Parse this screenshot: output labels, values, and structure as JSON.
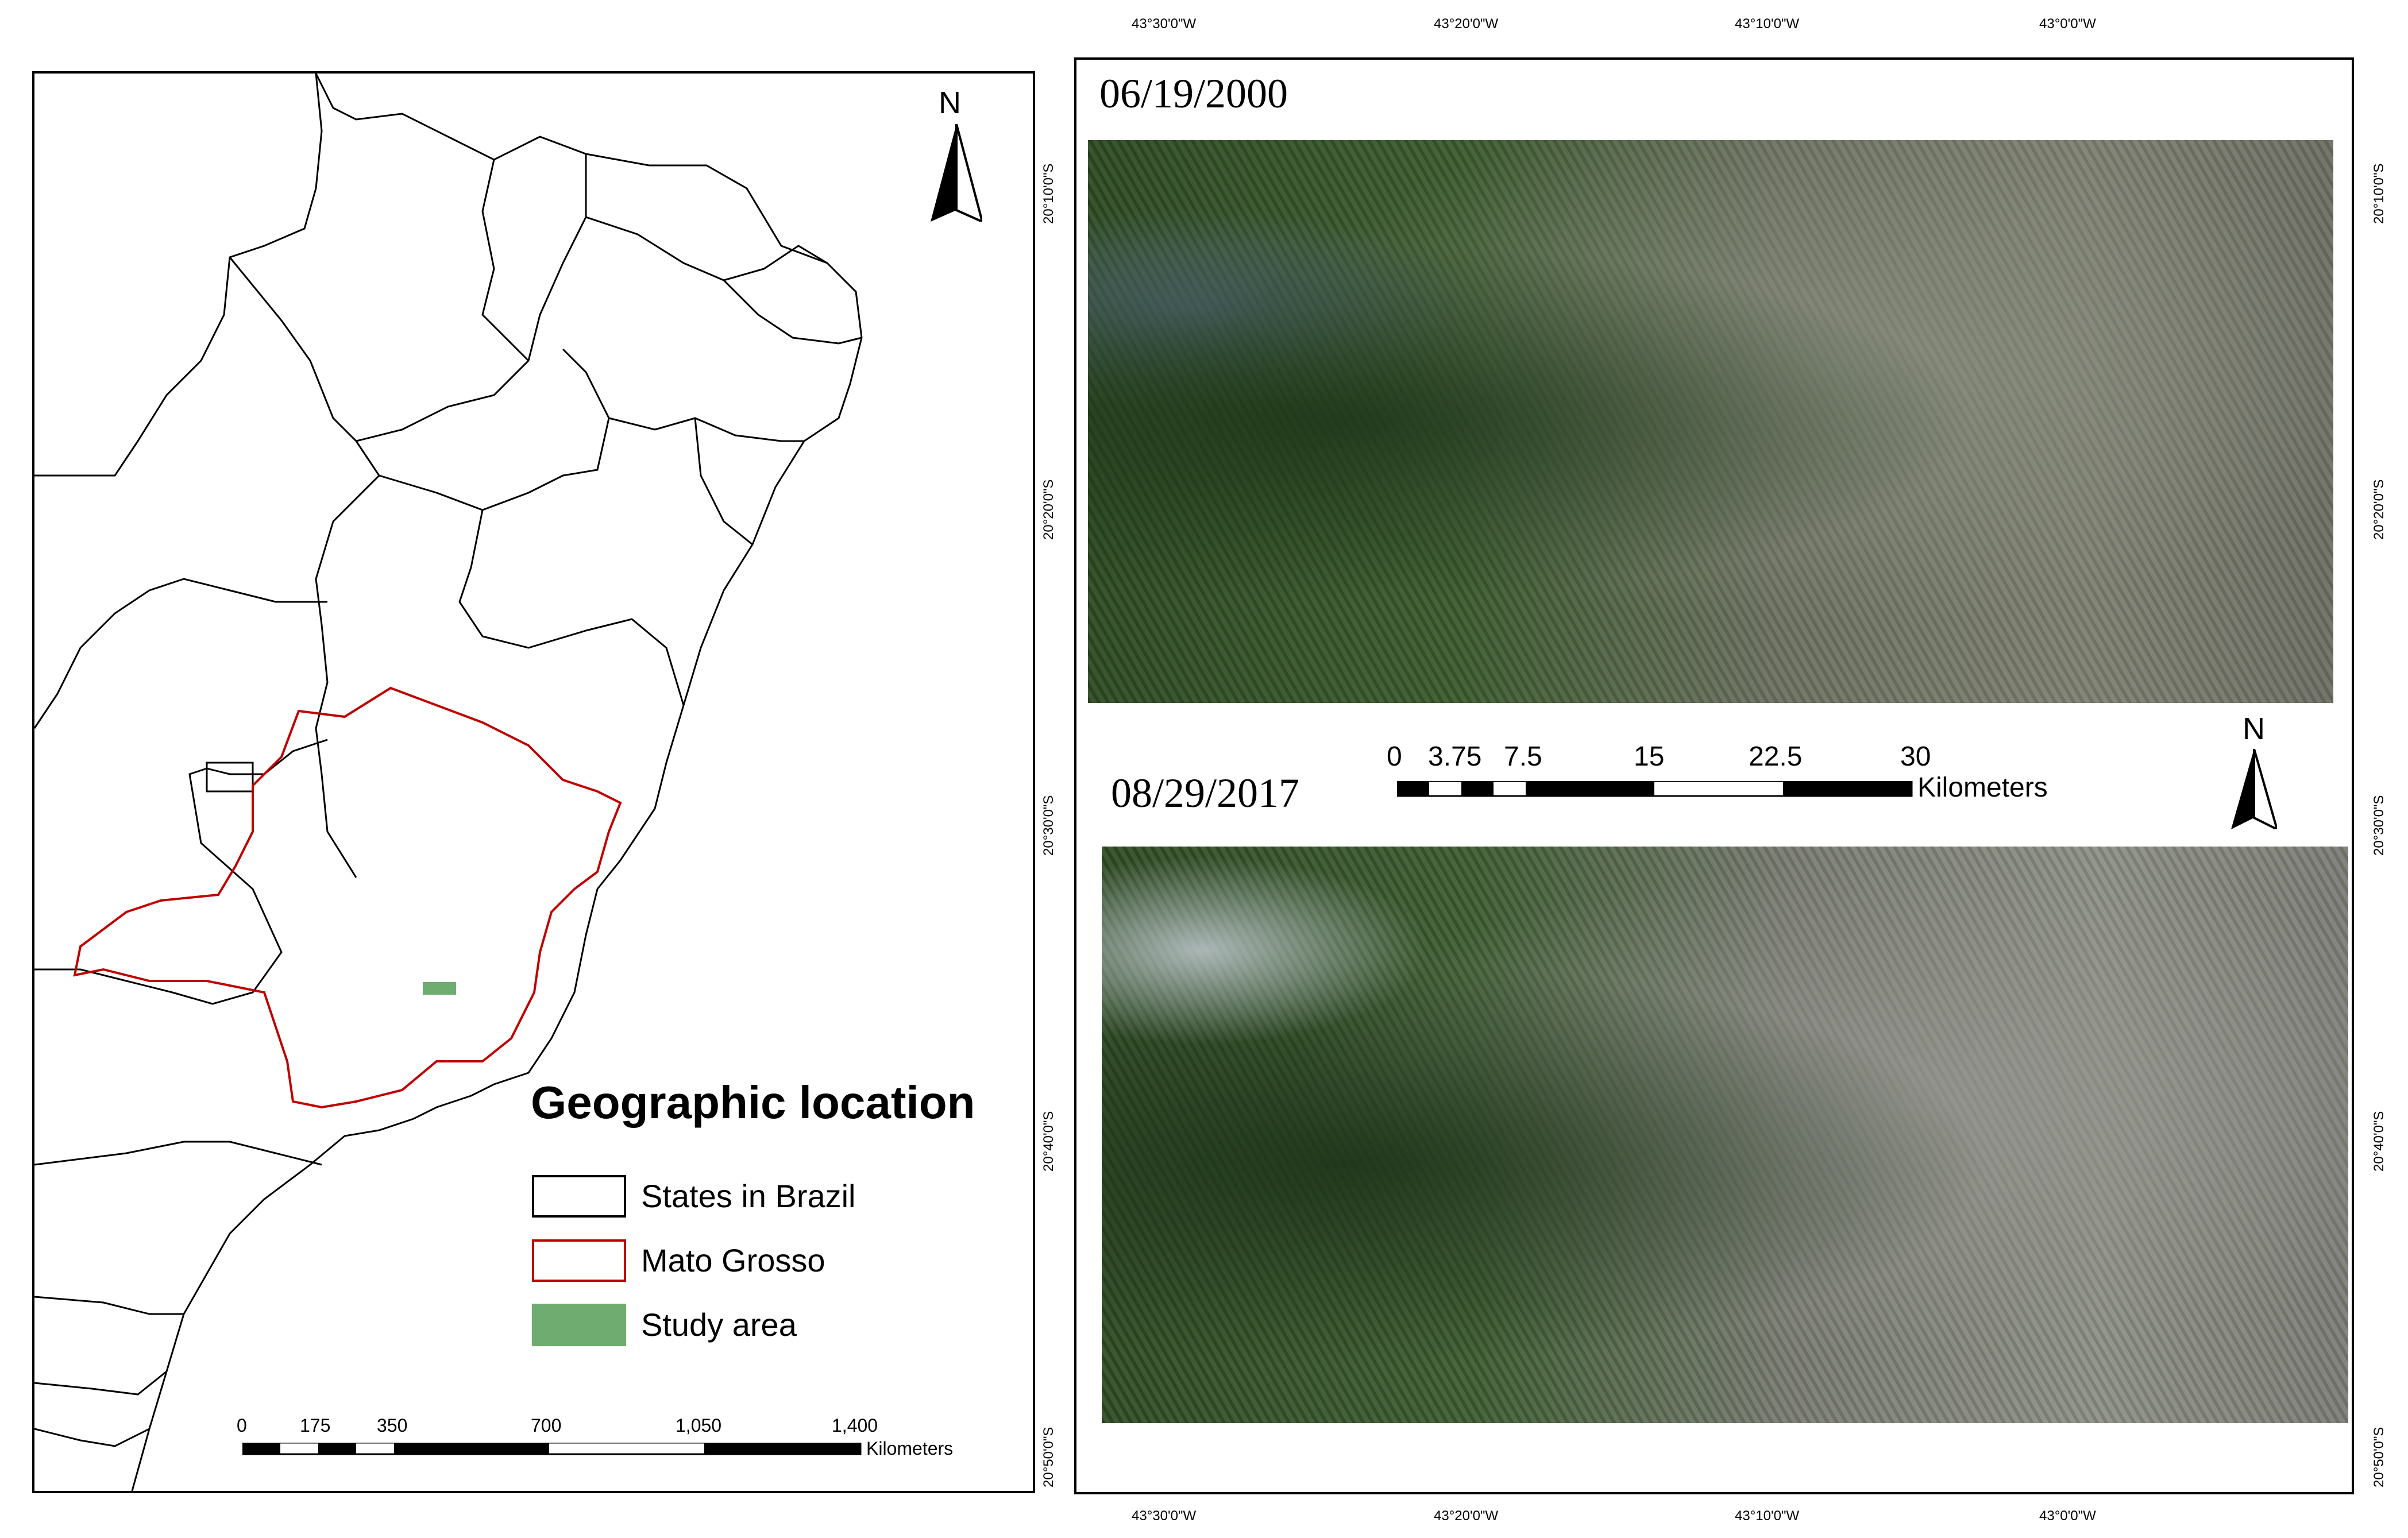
{
  "left_panel": {
    "north_label": "N",
    "legend": {
      "title": "Geographic location",
      "items": [
        {
          "label": "States in Brazil",
          "fill": "#ffffff",
          "stroke": "#000000"
        },
        {
          "label": "Mato Grosso",
          "fill": "#ffffff",
          "stroke": "#c00000"
        },
        {
          "label": "Study area",
          "fill": "#6fac6f",
          "stroke": "#6fac6f"
        }
      ]
    },
    "scale_bar": {
      "ticks": [
        "0",
        "175",
        "350",
        "700",
        "1,050",
        "1,400"
      ],
      "unit": "Kilometers"
    }
  },
  "right_panel": {
    "images": [
      {
        "date": "06/19/2000"
      },
      {
        "date": "08/29/2017"
      }
    ],
    "longitude_ticks": [
      "43°30'0\"W",
      "43°20'0\"W",
      "43°10'0\"W",
      "43°0'0\"W"
    ],
    "latitude_ticks": [
      "20°10'0\"S",
      "20°20'0\"S",
      "20°30'0\"S",
      "20°40'0\"S",
      "20°50'0\"S"
    ],
    "north_label": "N",
    "scale_bar": {
      "ticks": [
        "0",
        "3.75",
        "7.5",
        "15",
        "22.5",
        "30"
      ],
      "unit": "Kilometers"
    }
  },
  "colors": {
    "mato_grosso_outline": "#c00000",
    "study_area": "#6fac6f",
    "vegetation_dark": "#2d4a22",
    "terrain_grey": "#8c8f84"
  }
}
